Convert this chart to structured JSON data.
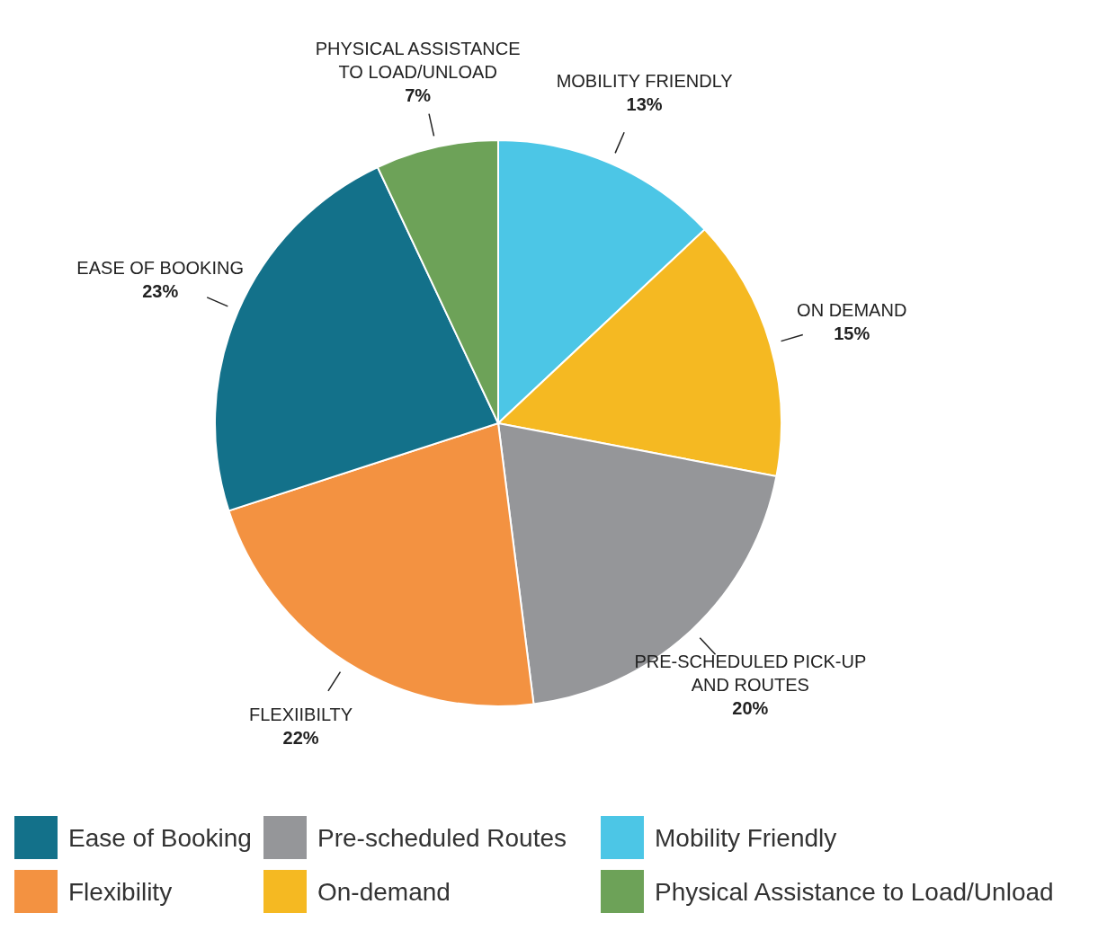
{
  "chart_data": {
    "type": "pie",
    "categories": [
      "MOBILITY FRIENDLY",
      "ON DEMAND",
      "PRE-SCHEDULED PICK-UP AND ROUTES",
      "FLEXIIBILTY",
      "EASE OF BOOKING",
      "PHYSICAL ASSISTANCE TO LOAD/UNLOAD"
    ],
    "values": [
      13,
      15,
      20,
      22,
      23,
      7
    ],
    "colors": [
      "#4cc6e6",
      "#f5b922",
      "#959699",
      "#f39241",
      "#13718a",
      "#6da258"
    ],
    "value_labels": [
      "13%",
      "15%",
      "20%",
      "22%",
      "23%",
      "7%"
    ],
    "annotations": [
      "Ease of Booking",
      "Flexibility",
      "Pre-scheduled Routes",
      "On-demand",
      "Mobility Friendly",
      "Physical Assistance to Load/Unload"
    ]
  }
}
